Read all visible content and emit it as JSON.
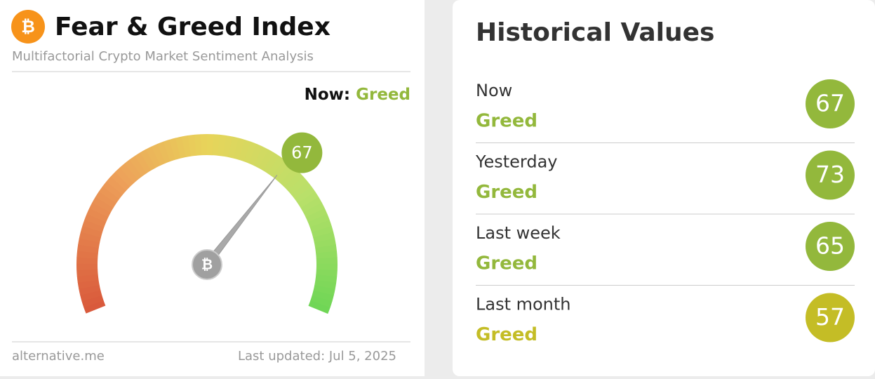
{
  "header": {
    "title": "Fear & Greed Index",
    "subtitle": "Multifactorial Crypto Market Sentiment Analysis"
  },
  "now": {
    "label": "Now:",
    "classification": "Greed",
    "color": "#93b83c"
  },
  "gauge": {
    "value": 67,
    "range": [
      0,
      100
    ],
    "color": "#93b83c"
  },
  "footer": {
    "source": "alternative.me",
    "updated": "Last updated: Jul 5, 2025"
  },
  "history": {
    "title": "Historical Values",
    "rows": [
      {
        "label": "Now",
        "classification": "Greed",
        "value": 67,
        "color": "#93b83c"
      },
      {
        "label": "Yesterday",
        "classification": "Greed",
        "value": 73,
        "color": "#93b83c"
      },
      {
        "label": "Last week",
        "classification": "Greed",
        "value": 65,
        "color": "#93b83c"
      },
      {
        "label": "Last month",
        "classification": "Greed",
        "value": 57,
        "color": "#c4bd26"
      }
    ]
  }
}
